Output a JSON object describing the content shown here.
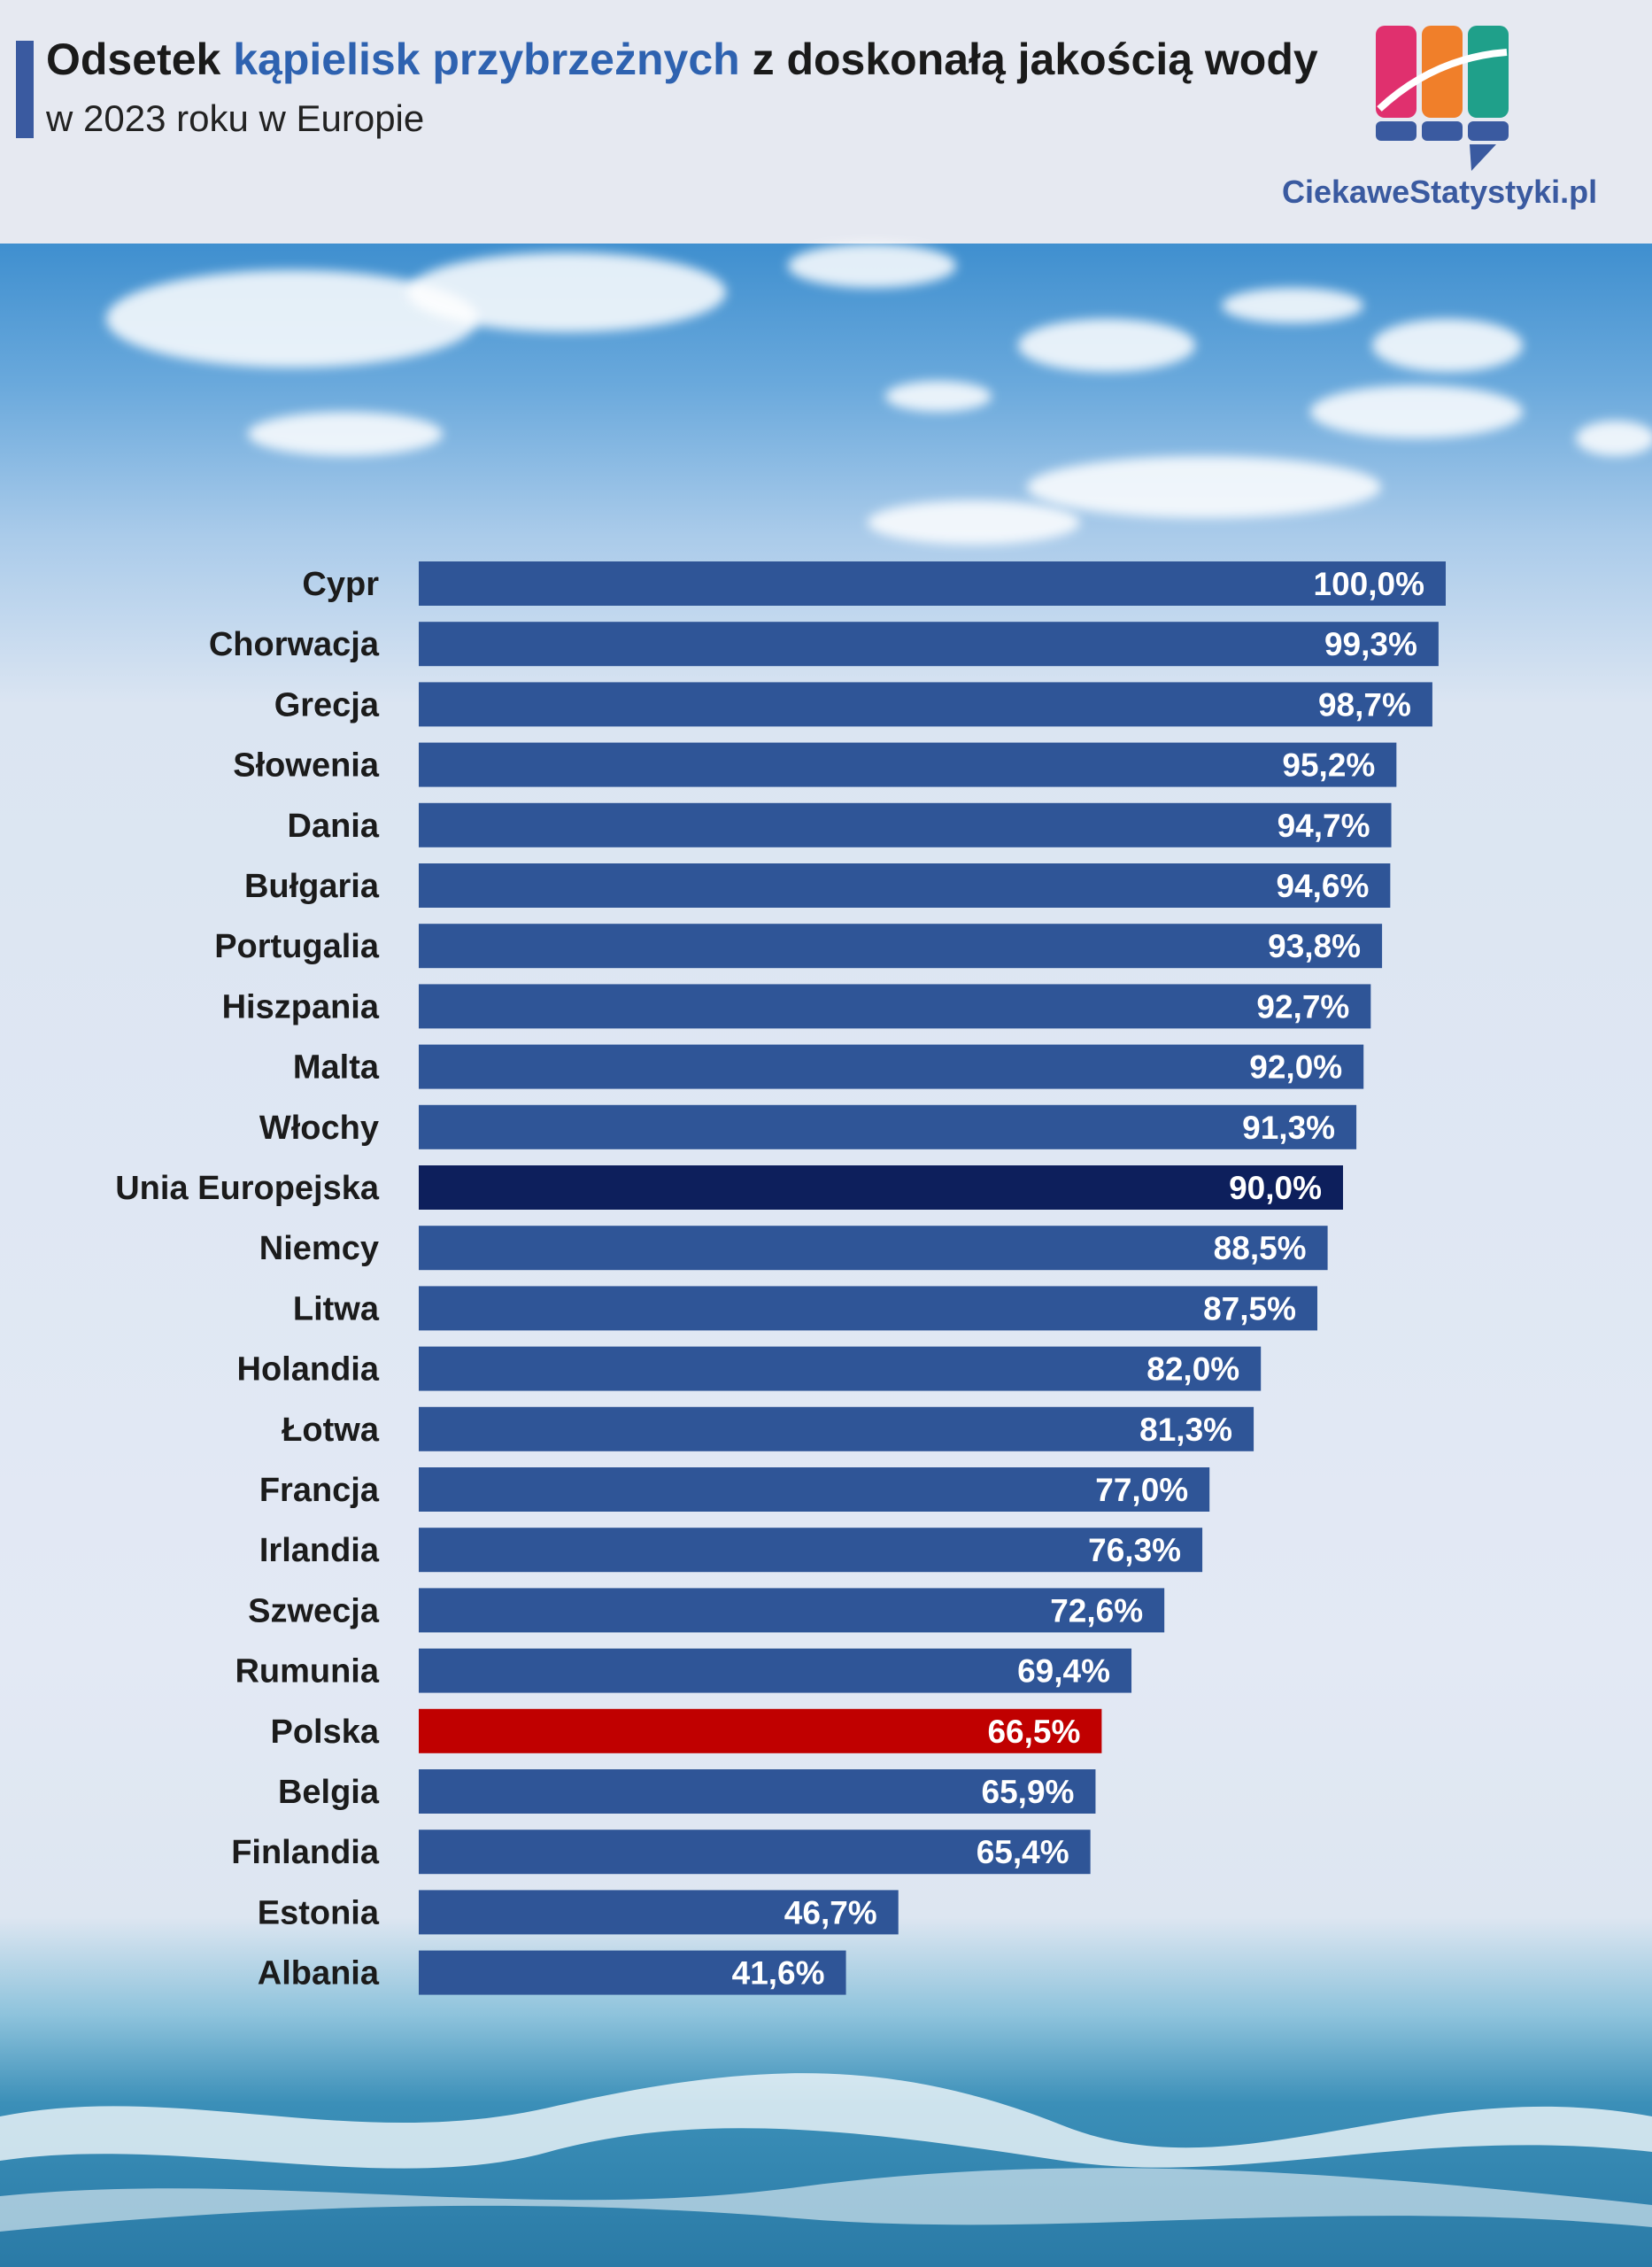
{
  "header": {
    "title_part1": "Odsetek ",
    "title_highlight": "kąpielisk przybrzeżnych",
    "title_part2": " z doskonałą jakością wody",
    "subtitle": "w 2023 roku w Europie",
    "brand": "CiekaweStatystyki.pl"
  },
  "colors": {
    "bar": "#2f5597",
    "bar_eu": "#0d1f5c",
    "bar_poland": "#c00000",
    "title_highlight": "#2e62b0",
    "accent": "#3a5aa0"
  },
  "chart_data": {
    "type": "bar",
    "orientation": "horizontal",
    "title": "Odsetek kąpielisk przybrzeżnych z doskonałą jakością wody",
    "subtitle": "w 2023 roku w Europie",
    "xlim": [
      0,
      100
    ],
    "grid": false,
    "categories": [
      "Cypr",
      "Chorwacja",
      "Grecja",
      "Słowenia",
      "Dania",
      "Bułgaria",
      "Portugalia",
      "Hiszpania",
      "Malta",
      "Włochy",
      "Unia Europejska",
      "Niemcy",
      "Litwa",
      "Holandia",
      "Łotwa",
      "Francja",
      "Irlandia",
      "Szwecja",
      "Rumunia",
      "Polska",
      "Belgia",
      "Finlandia",
      "Estonia",
      "Albania"
    ],
    "values": [
      100.0,
      99.3,
      98.7,
      95.2,
      94.7,
      94.6,
      93.8,
      92.7,
      92.0,
      91.3,
      90.0,
      88.5,
      87.5,
      82.0,
      81.3,
      77.0,
      76.3,
      72.6,
      69.4,
      66.5,
      65.9,
      65.4,
      46.7,
      41.6
    ],
    "value_labels": [
      "100,0%",
      "99,3%",
      "98,7%",
      "95,2%",
      "94,7%",
      "94,6%",
      "93,8%",
      "92,7%",
      "92,0%",
      "91,3%",
      "90,0%",
      "88,5%",
      "87,5%",
      "82,0%",
      "81,3%",
      "77,0%",
      "76,3%",
      "72,6%",
      "69,4%",
      "66,5%",
      "65,9%",
      "65,4%",
      "46,7%",
      "41,6%"
    ],
    "highlight": {
      "Unia Europejska": "bar_eu",
      "Polska": "bar_poland"
    }
  }
}
